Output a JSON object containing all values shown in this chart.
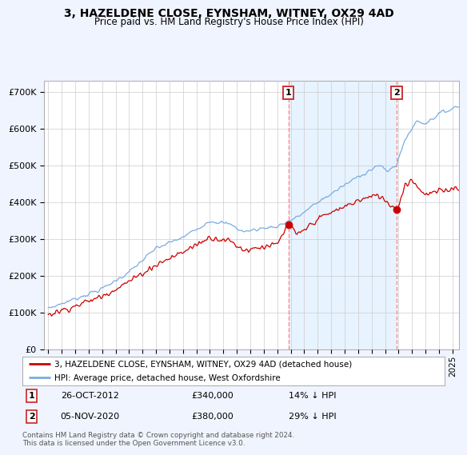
{
  "title": "3, HAZELDENE CLOSE, EYNSHAM, WITNEY, OX29 4AD",
  "subtitle": "Price paid vs. HM Land Registry's House Price Index (HPI)",
  "ylabel_ticks": [
    "£0",
    "£100K",
    "£200K",
    "£300K",
    "£400K",
    "£500K",
    "£600K",
    "£700K"
  ],
  "ytick_values": [
    0,
    100000,
    200000,
    300000,
    400000,
    500000,
    600000,
    700000
  ],
  "ylim": [
    0,
    730000
  ],
  "xlim_start": 1994.7,
  "xlim_end": 2025.5,
  "marker1_x": 2012.82,
  "marker1_y": 340000,
  "marker2_x": 2020.85,
  "marker2_y": 380000,
  "legend_entries": [
    "3, HAZELDENE CLOSE, EYNSHAM, WITNEY, OX29 4AD (detached house)",
    "HPI: Average price, detached house, West Oxfordshire"
  ],
  "legend_line_colors": [
    "#cc0000",
    "#7aade0"
  ],
  "annotation1_label": "1",
  "annotation1_date": "26-OCT-2012",
  "annotation1_price": "£340,000",
  "annotation1_hpi": "14% ↓ HPI",
  "annotation2_label": "2",
  "annotation2_date": "05-NOV-2020",
  "annotation2_price": "£380,000",
  "annotation2_hpi": "29% ↓ HPI",
  "footer": "Contains HM Land Registry data © Crown copyright and database right 2024.\nThis data is licensed under the Open Government Licence v3.0.",
  "hpi_color": "#7aade0",
  "price_color": "#cc0000",
  "shade_color": "#ddeeff",
  "bg_color": "#f0f4ff",
  "plot_bg": "#ffffff",
  "grid_color": "#cccccc",
  "marker_line_color": "#ff8888"
}
